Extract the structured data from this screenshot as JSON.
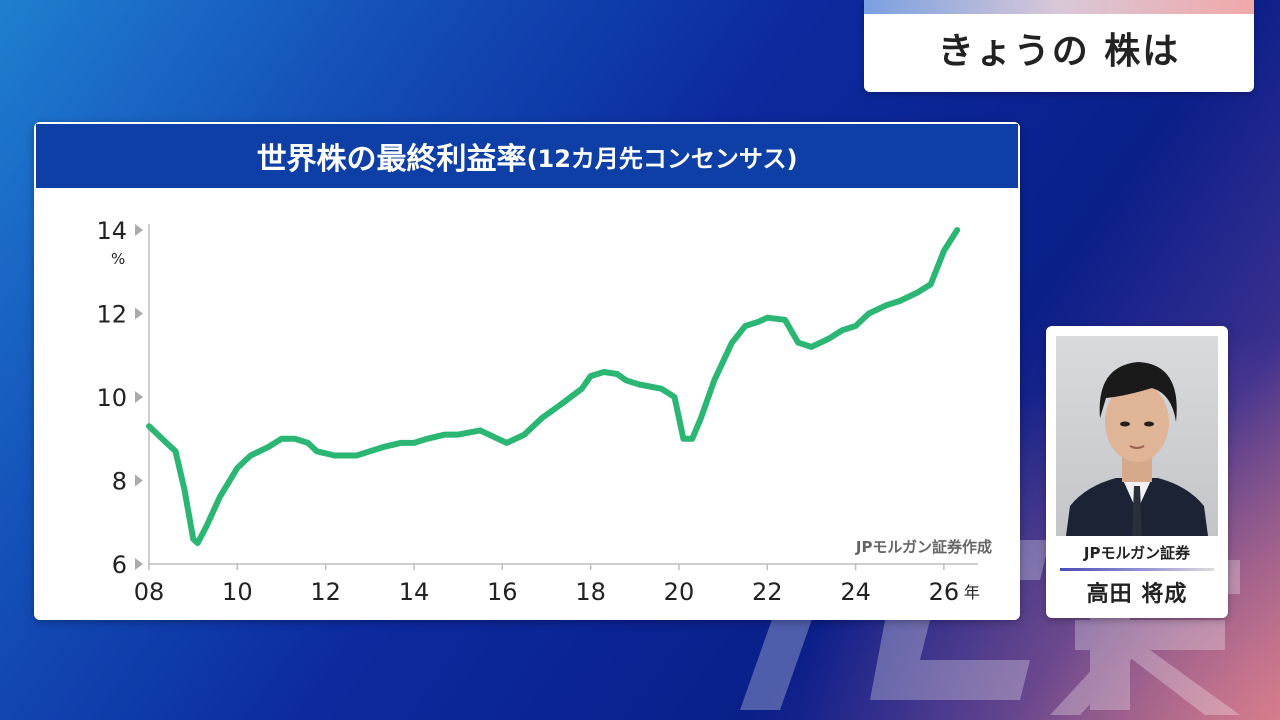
{
  "segment": {
    "title": "きょうの 株は"
  },
  "chart_header": {
    "title": "世界株の最終利益率",
    "subtitle": "(12カ月先コンセンサス)"
  },
  "source_note": "JPモルガン証券作成",
  "profile": {
    "company": "JPモルガン証券",
    "name": "高田 将成"
  },
  "colors": {
    "line": "#2bb673",
    "header": "#0d3fa6"
  },
  "chart_data": {
    "type": "line",
    "title": "世界株の最終利益率(12カ月先コンセンサス)",
    "xlabel": "年",
    "ylabel": "%",
    "xlim": [
      2008,
      2026.5
    ],
    "ylim": [
      6,
      14
    ],
    "yticks": [
      6,
      8,
      10,
      12,
      14
    ],
    "xticks": [
      {
        "value": 2008,
        "label": "08"
      },
      {
        "value": 2010,
        "label": "10"
      },
      {
        "value": 2012,
        "label": "12"
      },
      {
        "value": 2014,
        "label": "14"
      },
      {
        "value": 2016,
        "label": "16"
      },
      {
        "value": 2018,
        "label": "18"
      },
      {
        "value": 2020,
        "label": "20"
      },
      {
        "value": 2022,
        "label": "22"
      },
      {
        "value": 2024,
        "label": "24"
      },
      {
        "value": 2026,
        "label": "26"
      }
    ],
    "grid": false,
    "series": [
      {
        "x": [
          2008.0,
          2008.3,
          2008.6,
          2008.8,
          2009.0,
          2009.1,
          2009.3,
          2009.6,
          2010.0,
          2010.3,
          2010.7,
          2011.0,
          2011.3,
          2011.6,
          2011.8,
          2012.2,
          2012.7,
          2013.0,
          2013.3,
          2013.7,
          2014.0,
          2014.3,
          2014.7,
          2015.0,
          2015.5,
          2015.9,
          2016.1,
          2016.5,
          2016.9,
          2017.3,
          2017.8,
          2018.0,
          2018.3,
          2018.6,
          2018.8,
          2019.1,
          2019.6,
          2019.9,
          2020.1,
          2020.3,
          2020.5,
          2020.8,
          2021.2,
          2021.5,
          2021.8,
          2022.0,
          2022.4,
          2022.7,
          2023.0,
          2023.4,
          2023.7,
          2024.0,
          2024.3,
          2024.7,
          2025.0,
          2025.4,
          2025.7,
          2026.0,
          2026.3
        ],
        "y": [
          9.3,
          9.0,
          8.7,
          7.8,
          6.6,
          6.5,
          6.9,
          7.6,
          8.3,
          8.6,
          8.8,
          9.0,
          9.0,
          8.9,
          8.7,
          8.6,
          8.6,
          8.7,
          8.8,
          8.9,
          8.9,
          9.0,
          9.1,
          9.1,
          9.2,
          9.0,
          8.9,
          9.1,
          9.5,
          9.8,
          10.2,
          10.5,
          10.6,
          10.55,
          10.4,
          10.3,
          10.2,
          10.0,
          9.0,
          9.0,
          9.5,
          10.4,
          11.3,
          11.7,
          11.8,
          11.9,
          11.85,
          11.3,
          11.2,
          11.4,
          11.6,
          11.7,
          12.0,
          12.2,
          12.3,
          12.5,
          12.7,
          13.5,
          14.0
        ]
      }
    ]
  }
}
